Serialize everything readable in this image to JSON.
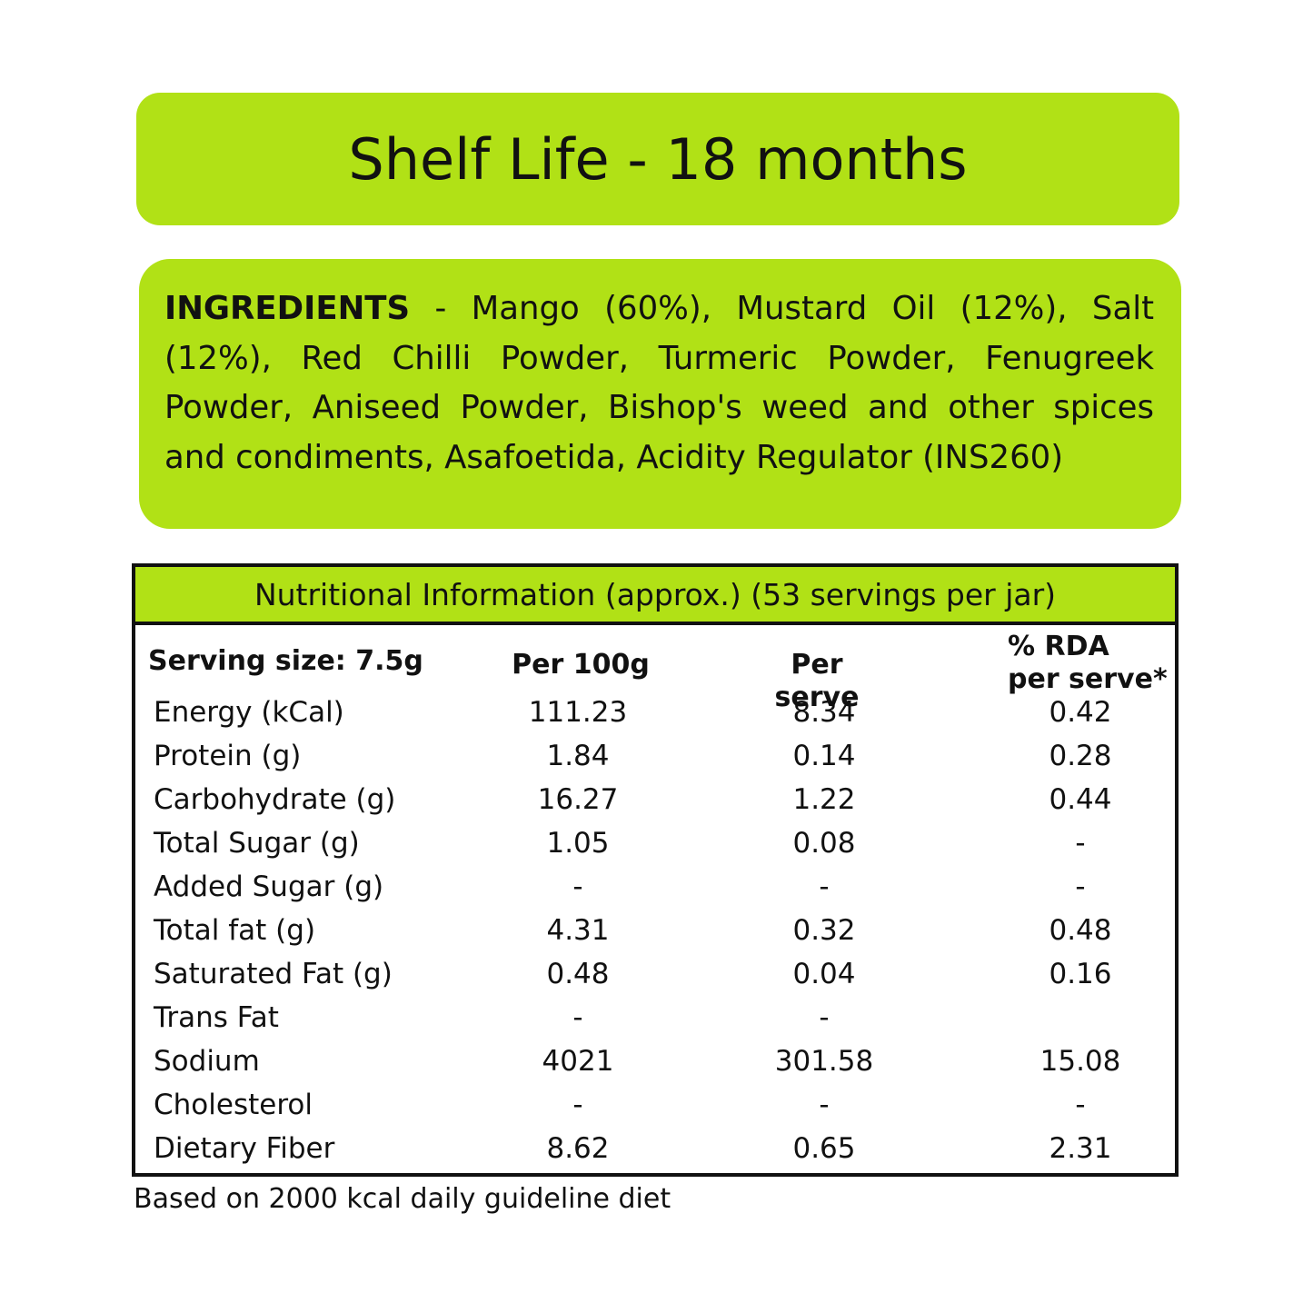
{
  "shelf_life": "Shelf Life - 18 months",
  "ingredients": {
    "heading": "INGREDIENTS",
    "text": " - Mango (60%), Mustard Oil (12%), Salt (12%), Red Chilli Powder, Turmeric Powder, Fenugreek Powder, Aniseed Powder, Bishop's weed and other spices and condiments, Asafoetida, Acidity Regulator (INS260)"
  },
  "nutrition": {
    "title": "Nutritional Information (approx.) (53 servings per jar)",
    "columns": {
      "serving_size": "Serving size: 7.5g",
      "per_100g": "Per 100g",
      "per_serve": "Per serve",
      "rda_line1": "% RDA",
      "rda_line2": "per serve*"
    },
    "rows": [
      {
        "label": "Energy (kCal)",
        "per_100g": "111.23",
        "per_serve": "8.34",
        "rda": "0.42"
      },
      {
        "label": "Protein (g)",
        "per_100g": "1.84",
        "per_serve": "0.14",
        "rda": "0.28"
      },
      {
        "label": "Carbohydrate (g)",
        "per_100g": "16.27",
        "per_serve": "1.22",
        "rda": "0.44"
      },
      {
        "label": "Total Sugar (g)",
        "per_100g": "1.05",
        "per_serve": "0.08",
        "rda": "-"
      },
      {
        "label": "Added Sugar (g)",
        "per_100g": "-",
        "per_serve": "-",
        "rda": "-"
      },
      {
        "label": "Total fat (g)",
        "per_100g": "4.31",
        "per_serve": "0.32",
        "rda": "0.48"
      },
      {
        "label": "Saturated Fat (g)",
        "per_100g": "0.48",
        "per_serve": "0.04",
        "rda": "0.16"
      },
      {
        "label": "Trans Fat",
        "per_100g": "-",
        "per_serve": "-",
        "rda": ""
      },
      {
        "label": "Sodium",
        "per_100g": "4021",
        "per_serve": "301.58",
        "rda": "15.08"
      },
      {
        "label": "Cholesterol",
        "per_100g": "-",
        "per_serve": "-",
        "rda": "-"
      },
      {
        "label": "Dietary Fiber",
        "per_100g": "8.62",
        "per_serve": "0.65",
        "rda": "2.31"
      }
    ]
  },
  "footnote": "Based on 2000 kcal daily guideline diet",
  "colors": {
    "accent_green": "#b1e116",
    "text": "#111111",
    "border": "#111111"
  }
}
